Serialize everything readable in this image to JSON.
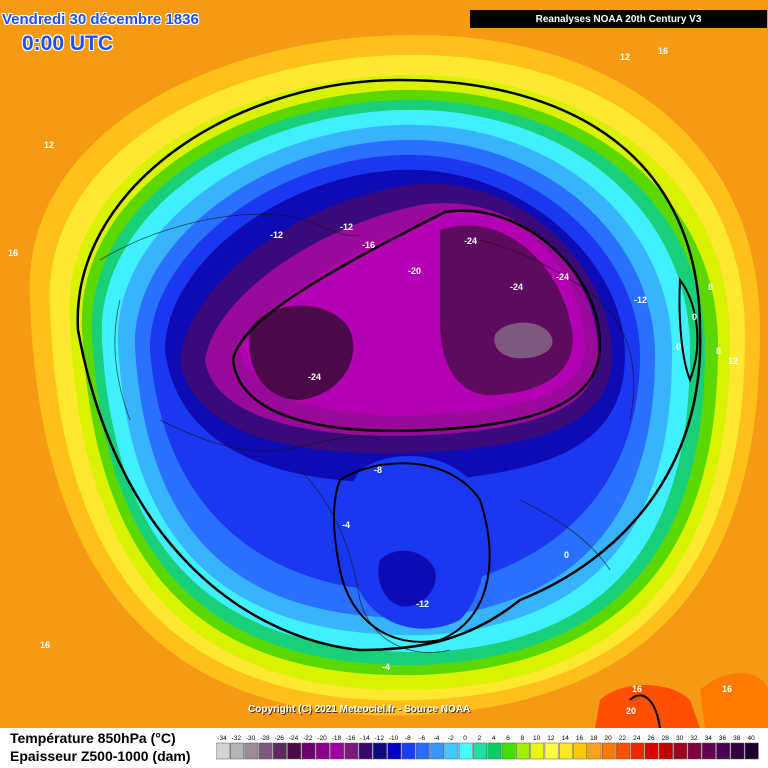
{
  "header": {
    "date": "Vendredi 30 décembre 1836",
    "time": "0:00 UTC",
    "source": "Reanalyses NOAA 20th Century V3"
  },
  "copyright": "Copyright (C) 2021 Meteociel.fr - Source NOAA",
  "legend": {
    "line1": "Température 850hPa (°C)",
    "line2": "Epaisseur Z500-1000 (dam)",
    "ticks": [
      "-34",
      "-32",
      "-30",
      "-28",
      "-26",
      "-24",
      "-22",
      "-20",
      "-18",
      "-16",
      "-14",
      "-12",
      "-10",
      "-8",
      "-6",
      "-4",
      "-2",
      "0",
      "2",
      "4",
      "6",
      "8",
      "10",
      "12",
      "14",
      "16",
      "18",
      "20",
      "22",
      "24",
      "26",
      "28",
      "30",
      "32",
      "34",
      "36",
      "38",
      "40"
    ],
    "colors": [
      "#d4d4d4",
      "#b4b4b4",
      "#9a8a9a",
      "#7d5a7d",
      "#5e2a5e",
      "#4a0a4a",
      "#6e006e",
      "#8a008a",
      "#a100a1",
      "#7a1a7a",
      "#3a0a6a",
      "#100a80",
      "#0000c8",
      "#1a3cff",
      "#2a6aff",
      "#3a96ff",
      "#40c8ff",
      "#46ffff",
      "#20e0a0",
      "#00d060",
      "#40e000",
      "#a0f000",
      "#e8f800",
      "#ffff40",
      "#ffea20",
      "#ffc800",
      "#ffa020",
      "#ff7a00",
      "#ff5000",
      "#f02800",
      "#e00000",
      "#c00000",
      "#a00020",
      "#80003c",
      "#640050",
      "#4a0050",
      "#300040",
      "#1a0030"
    ]
  },
  "map_labels": [
    {
      "text": "12",
      "cls": "lbl"
    },
    {
      "text": "16",
      "cls": "lbl"
    },
    {
      "text": "12",
      "cls": "lbl"
    },
    {
      "text": "16",
      "cls": "lbl"
    },
    {
      "text": "-12",
      "cls": "lbl"
    },
    {
      "text": "-12",
      "cls": "lbl"
    },
    {
      "text": "-16",
      "cls": "lbl"
    },
    {
      "text": "-20",
      "cls": "lbl"
    },
    {
      "text": "-24",
      "cls": "lbl"
    },
    {
      "text": "-24",
      "cls": "lbl"
    },
    {
      "text": "-24",
      "cls": "lbl"
    },
    {
      "text": "-24",
      "cls": "lbl"
    },
    {
      "text": "-12",
      "cls": "lbl"
    },
    {
      "text": "8",
      "cls": "lbl"
    },
    {
      "text": "0",
      "cls": "lbl"
    },
    {
      "text": "0",
      "cls": "lbl"
    },
    {
      "text": "8",
      "cls": "lbl"
    },
    {
      "text": "12",
      "cls": "lbl"
    },
    {
      "text": "-8",
      "cls": "lbl"
    },
    {
      "text": "-4",
      "cls": "lbl"
    },
    {
      "text": "0",
      "cls": "lbl"
    },
    {
      "text": "-12",
      "cls": "lbl"
    },
    {
      "text": "-4",
      "cls": "lbl"
    },
    {
      "text": "16",
      "cls": "lbl"
    },
    {
      "text": "16",
      "cls": "lbl"
    },
    {
      "text": "16",
      "cls": "lbl"
    },
    {
      "text": "20",
      "cls": "lbl"
    }
  ]
}
